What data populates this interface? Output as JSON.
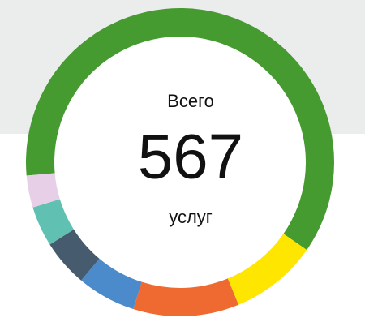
{
  "chart_data": {
    "type": "donut",
    "total_label": "Всего",
    "total": 567,
    "unit_label": "услуг",
    "values": [
      346,
      52,
      63,
      35,
      28,
      24,
      19
    ],
    "colors": [
      "#459a30",
      "#ffe600",
      "#ee6a30",
      "#4b8bcb",
      "#475b6f",
      "#60c1b3",
      "#e7d0e7"
    ]
  }
}
